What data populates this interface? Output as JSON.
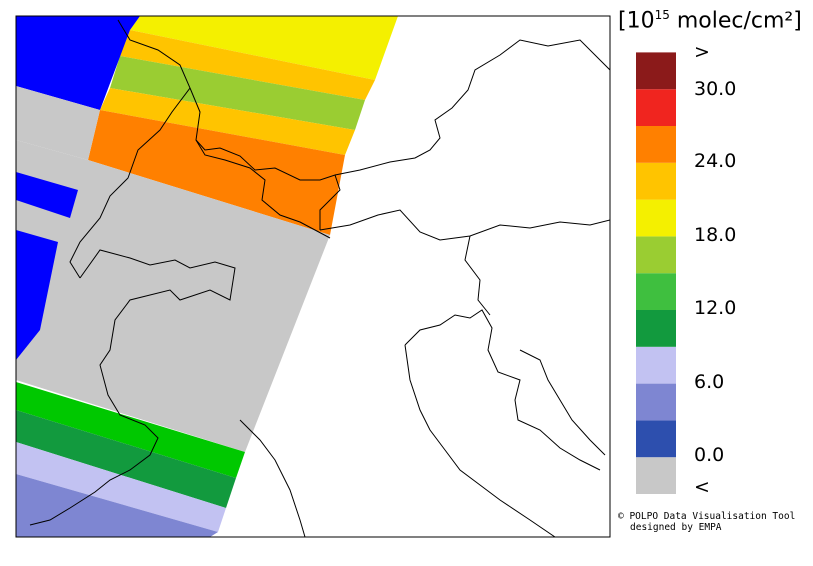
{
  "legend": {
    "title_prefix": "[10",
    "title_exponent": "15",
    "title_suffix": " molec/cm²]",
    "bins": [
      {
        "label": "<",
        "color": "#c8c8c8"
      },
      {
        "label": "",
        "color": "#2d4fae"
      },
      {
        "label": "",
        "color": "#7e86d2"
      },
      {
        "label": "",
        "color": "#c2c2f2"
      },
      {
        "label": "",
        "color": "#129a3e"
      },
      {
        "label": "",
        "color": "#3fbf3f"
      },
      {
        "label": "",
        "color": "#9acd32"
      },
      {
        "label": "",
        "color": "#f4f000"
      },
      {
        "label": "",
        "color": "#ffc400"
      },
      {
        "label": "",
        "color": "#ff8000"
      },
      {
        "label": "",
        "color": "#f0251f"
      },
      {
        "label": ">",
        "color": "#8b1a1a"
      }
    ],
    "tick_labels": [
      "0.0",
      "6.0",
      "12.0",
      "18.0",
      "24.0",
      "30.0"
    ]
  },
  "credit": {
    "line1": "© POLPO Data Visualisation Tool",
    "line2": "designed by EMPA"
  },
  "colors": {
    "frame": "#000000",
    "coastline": "#000000",
    "background": "#ffffff"
  }
}
